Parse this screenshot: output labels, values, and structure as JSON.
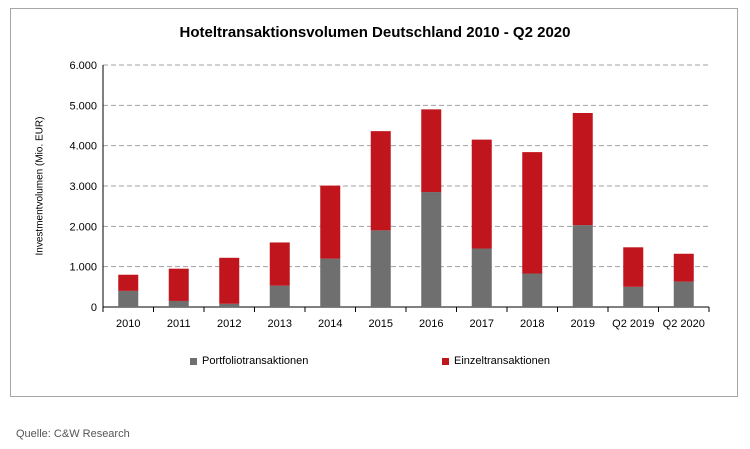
{
  "source_label": "Quelle: C&W Research",
  "colors": {
    "portfolio": "#6f6f6f",
    "einzel": "#c0151c",
    "grid": "#a0a0a0"
  },
  "chart_data": {
    "type": "bar",
    "stacked": true,
    "title": "Hoteltransaktionsvolumen Deutschland 2010 - Q2 2020",
    "xlabel": "",
    "ylabel": "Investmentvolumen  (Mio. EUR)",
    "ylim": [
      0,
      6000
    ],
    "yticks": [
      "0",
      "1.000",
      "2.000",
      "3.000",
      "4.000",
      "5.000",
      "6.000"
    ],
    "ytick_values": [
      0,
      1000,
      2000,
      3000,
      4000,
      5000,
      6000
    ],
    "grid": true,
    "legend_position": "bottom",
    "categories": [
      "2010",
      "2011",
      "2012",
      "2013",
      "2014",
      "2015",
      "2016",
      "2017",
      "2018",
      "2019",
      "Q2 2019",
      "Q2 2020"
    ],
    "series": [
      {
        "name": "Portfoliotransaktionen",
        "values": [
          400,
          150,
          80,
          530,
          1200,
          1900,
          2850,
          1450,
          830,
          2030,
          500,
          630
        ]
      },
      {
        "name": "Einzeltransaktionen",
        "values": [
          400,
          800,
          1140,
          1070,
          1810,
          2460,
          2050,
          2700,
          3010,
          2780,
          980,
          690
        ]
      }
    ]
  }
}
